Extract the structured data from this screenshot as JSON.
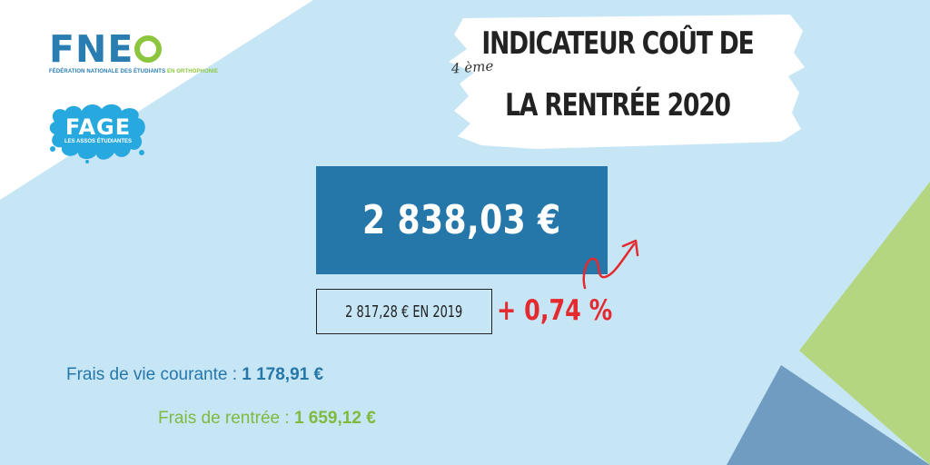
{
  "colors": {
    "background_light_blue": "#c6e6f6",
    "brand_blue": "#2677a9",
    "brand_green": "#8cc63f",
    "accent_red": "#e42a2f",
    "corner_green": "#b4d680",
    "corner_steel_blue": "#6f9cc0"
  },
  "logos": {
    "fneo": {
      "name": "FNEO",
      "word_prefix": "FNE",
      "tagline_main": "FÉDÉRATION NATIONALE DES ÉTUDIANTS",
      "tagline_accent": "EN ORTHOPHONIE"
    },
    "fage": {
      "name": "FAGE",
      "tagline": "LES ASSOS ÉTUDIANTES"
    }
  },
  "title": {
    "edition": "4 ème",
    "line1": "INDICATEUR COÛT DE",
    "line2": "LA RENTRÉE 2020"
  },
  "main_amount": "2 838,03 €",
  "previous_year": "2 817,28 € EN 2019",
  "delta": "+ 0,74 %",
  "breakdown": {
    "living_costs_label": "Frais de vie courante :",
    "living_costs_value": "1 178,91 €",
    "back_to_school_label": "Frais de rentrée :",
    "back_to_school_value": "1 659,12 €"
  },
  "icons": {
    "trend_arrow": "trend-up-arrow-icon"
  }
}
